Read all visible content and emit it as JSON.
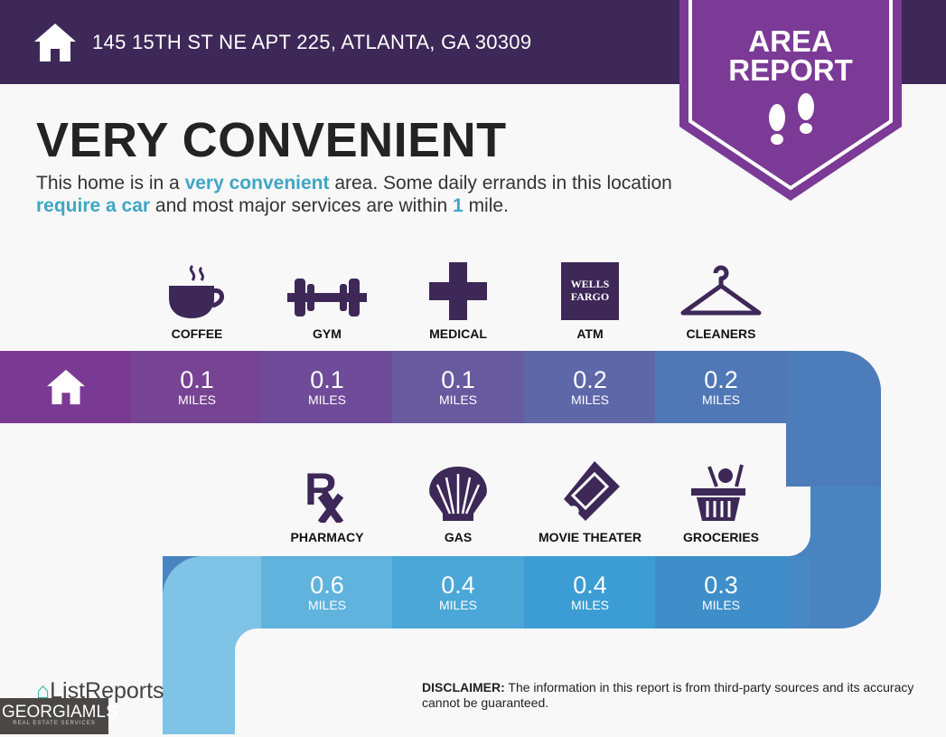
{
  "header": {
    "address": "145 15TH ST NE APT 225, ATLANTA, GA 30309",
    "icon": "home-icon"
  },
  "badge": {
    "line1": "AREA",
    "line2": "REPORT",
    "icon": "footprints-icon"
  },
  "title": "VERY CONVENIENT",
  "description": {
    "p1": "This home is in a ",
    "h1": "very convenient",
    "p2": " area. Some daily errands in this location ",
    "h2": "require a car",
    "p3": " and most major services are within ",
    "h3": "1",
    "p4": " mile."
  },
  "row1": [
    {
      "label": "COFFEE",
      "value": "0.1",
      "unit": "MILES",
      "icon": "coffee-icon"
    },
    {
      "label": "GYM",
      "value": "0.1",
      "unit": "MILES",
      "icon": "dumbbell-icon"
    },
    {
      "label": "MEDICAL",
      "value": "0.1",
      "unit": "MILES",
      "icon": "medical-cross-icon"
    },
    {
      "label": "ATM",
      "value": "0.2",
      "unit": "MILES",
      "icon": "wells-fargo-icon",
      "logo_text": "WELLS FARGO"
    },
    {
      "label": "CLEANERS",
      "value": "0.2",
      "unit": "MILES",
      "icon": "hanger-icon"
    }
  ],
  "row2": [
    {
      "label": "PHARMACY",
      "value": "0.6",
      "unit": "MILES",
      "icon": "rx-icon"
    },
    {
      "label": "GAS",
      "value": "0.4",
      "unit": "MILES",
      "icon": "shell-icon"
    },
    {
      "label": "MOVIE THEATER",
      "value": "0.4",
      "unit": "MILES",
      "icon": "ticket-icon"
    },
    {
      "label": "GROCERIES",
      "value": "0.3",
      "unit": "MILES",
      "icon": "basket-icon"
    }
  ],
  "footer": {
    "brand": "ListReports",
    "disclaimer_label": "DISCLAIMER:",
    "disclaimer": " The information in this report is from third-party sources and its accuracy cannot be guaranteed.",
    "mls": "GEORGIAMLS",
    "mls_sub": "REAL ESTATE SERVICES"
  },
  "colors": {
    "header": "#3d2858",
    "badge": "#7b3a96",
    "icon": "#3d2858",
    "accent": "#3fa6c4"
  }
}
